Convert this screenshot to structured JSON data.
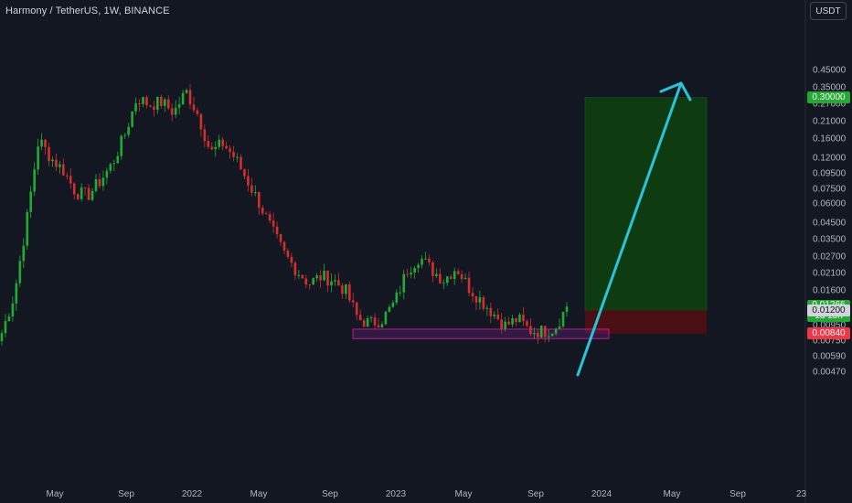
{
  "header": {
    "title": "Harmony / TetherUS, 1W, BINANCE"
  },
  "price_axis": {
    "currency": "USDT"
  },
  "colors": {
    "background": "#131722",
    "up": "#22ab33",
    "down": "#d32f2f",
    "arrow": "#26c6da",
    "target_zone": "#0e3b10",
    "stop_zone": "#4a0f12",
    "support_box": "#c2188f"
  },
  "chart_data": {
    "type": "candlestick",
    "title": "Harmony / TetherUS, 1W, BINANCE",
    "y_scale": "log",
    "y_ticks": [
      "0.45000",
      "0.35000",
      "0.27000",
      "0.21000",
      "0.16000",
      "0.12000",
      "0.09500",
      "0.07500",
      "0.06000",
      "0.04500",
      "0.03500",
      "0.02700",
      "0.02100",
      "0.01600",
      "0.00950",
      "0.00750",
      "0.00590",
      "0.00470"
    ],
    "x_ticks": [
      "May",
      "Sep",
      "2022",
      "May",
      "Sep",
      "2023",
      "May",
      "Sep",
      "2024",
      "May",
      "Sep",
      "23"
    ],
    "price_tags": {
      "target": "0.30000",
      "last": "0.01266",
      "countdown": "1d 15h",
      "entry": "0.01200",
      "stop": "0.00840"
    },
    "position": {
      "entry": 0.012,
      "target": 0.3,
      "stop": 0.0084
    },
    "support_zone": {
      "low": 0.0078,
      "high": 0.009
    },
    "approx_close_path": [
      [
        0.0085,
        0.015,
        0.045,
        0.16,
        0.12,
        0.1,
        0.072,
        0.068,
        0.085,
        0.11,
        0.17,
        0.3,
        0.27,
        0.28,
        0.24,
        0.33,
        0.23
      ],
      [
        0.13,
        0.15,
        0.12,
        0.085,
        0.06,
        0.04,
        0.028,
        0.022,
        0.018,
        0.02,
        0.019,
        0.016,
        0.0105,
        0.0098,
        0.0105
      ],
      [
        0.0135,
        0.022,
        0.027,
        0.022,
        0.019,
        0.023,
        0.017,
        0.014,
        0.0115,
        0.0095,
        0.0105,
        0.0088,
        0.0087,
        0.0091,
        0.0126
      ]
    ]
  }
}
